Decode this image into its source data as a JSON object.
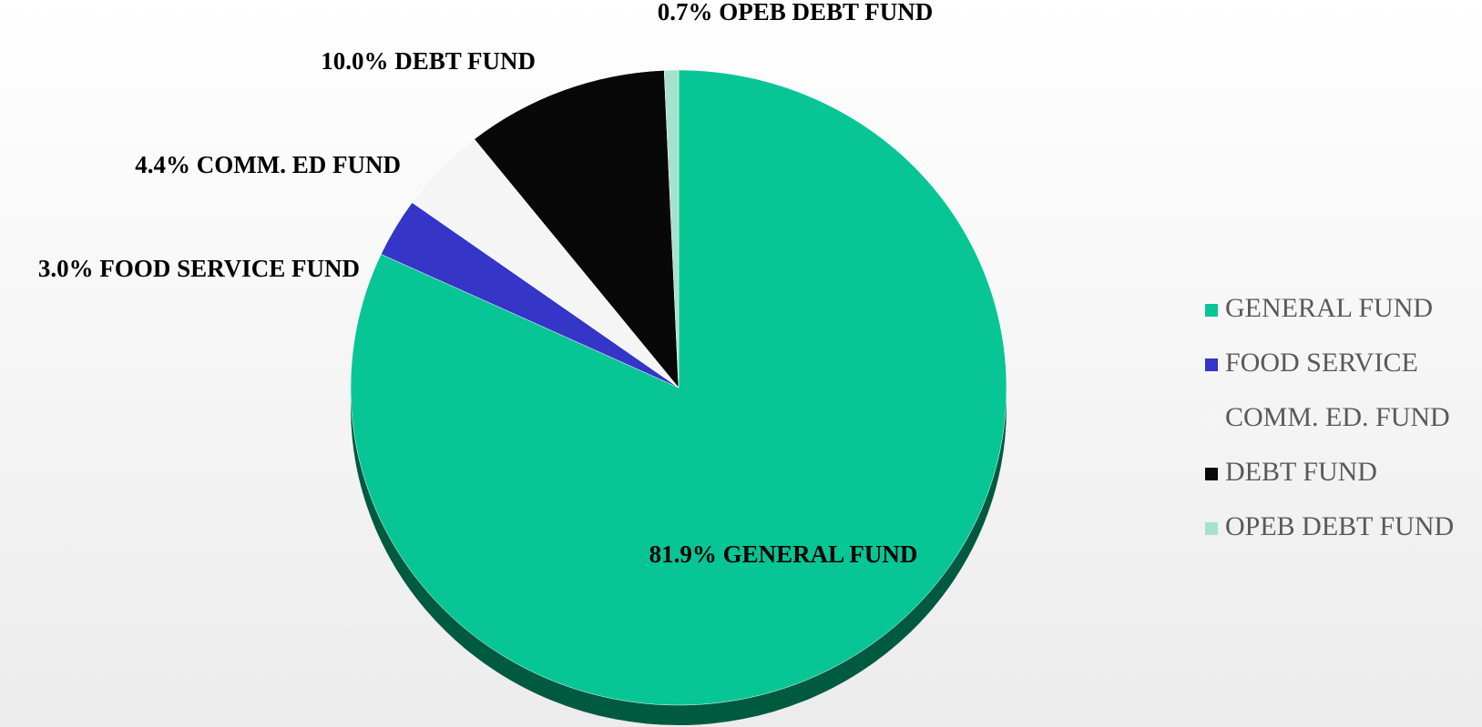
{
  "chart_data": {
    "type": "pie",
    "categories": [
      "GENERAL FUND",
      "FOOD SERVICE",
      "COMM. ED. FUND",
      "DEBT FUND",
      "OPEB DEBT FUND"
    ],
    "values": [
      81.9,
      3.0,
      4.4,
      10.0,
      0.7
    ],
    "value_labels": [
      "81.9% GENERAL FUND",
      "3.0% FOOD SERVICE FUND",
      "4.4% COMM. ED FUND",
      "10.0% DEBT FUND",
      "0.7% OPEB DEBT FUND"
    ],
    "colors": [
      "#08c595",
      "#3535c8",
      "#f5f5f5",
      "#080808",
      "#a6e1cc"
    ],
    "legend": "right"
  }
}
